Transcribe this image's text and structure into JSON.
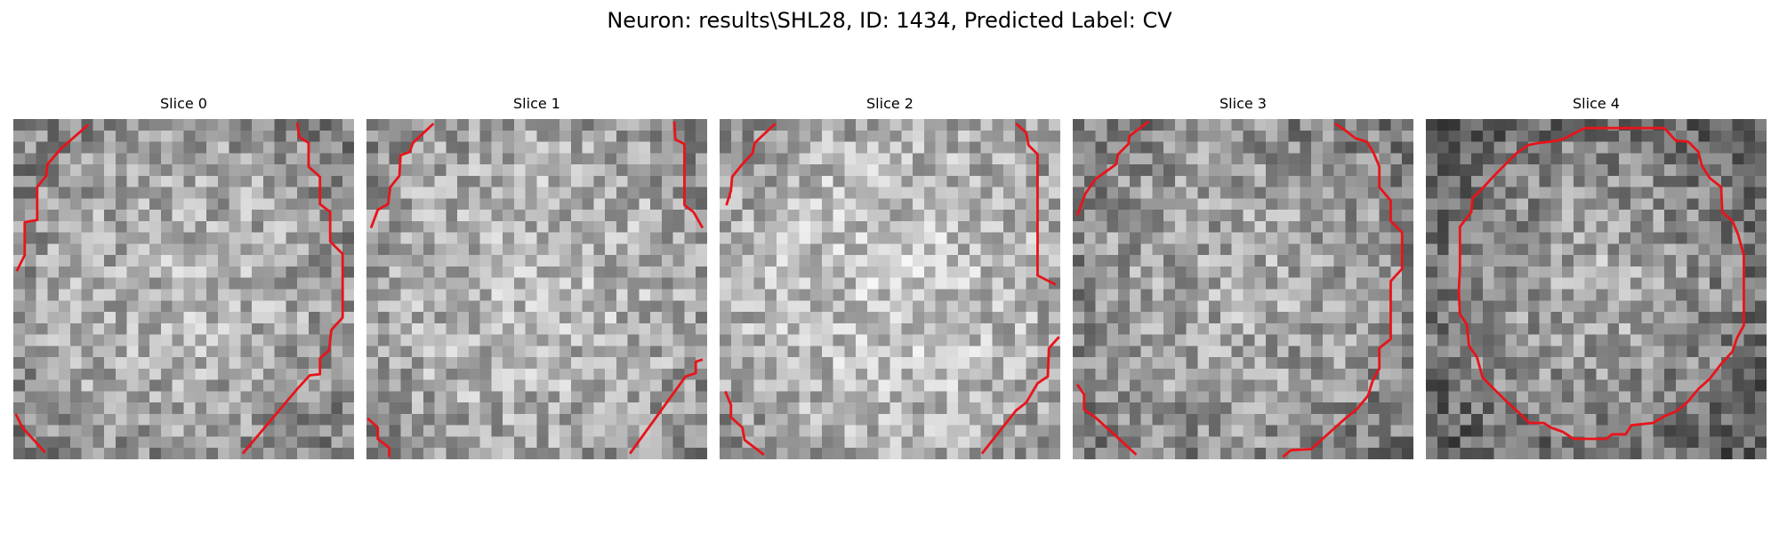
{
  "figure": {
    "title": "Neuron: results\\SHL28, ID: 1434, Predicted Label: CV"
  },
  "contour_color": "#e8141a",
  "panels": [
    {
      "title": "Slice 0",
      "brightness": 0.62,
      "center_boost": 0.1,
      "seed": 11
    },
    {
      "title": "Slice 1",
      "brightness": 0.66,
      "center_boost": 0.08,
      "seed": 23
    },
    {
      "title": "Slice 2",
      "brightness": 0.7,
      "center_boost": 0.08,
      "seed": 37
    },
    {
      "title": "Slice 3",
      "brightness": 0.58,
      "center_boost": 0.1,
      "seed": 41
    },
    {
      "title": "Slice 4",
      "brightness": 0.48,
      "center_boost": 0.22,
      "seed": 53
    }
  ]
}
